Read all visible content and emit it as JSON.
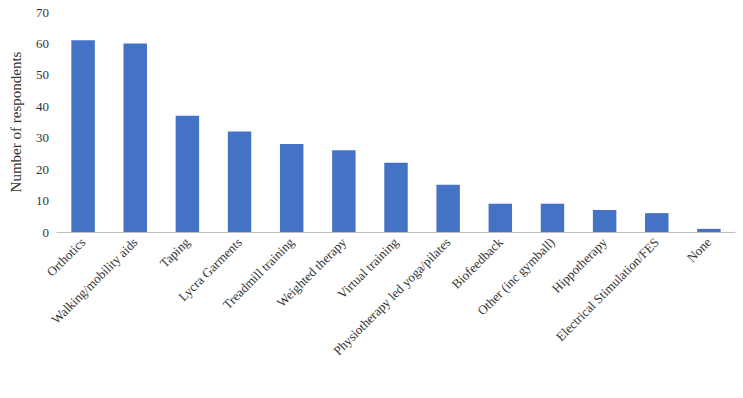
{
  "chart_data": {
    "type": "bar",
    "y_label": "Number of respondents",
    "categories": [
      "Orthotics",
      "Walking/mobility aids",
      "Taping",
      "Lycra Garments",
      "Treadmill training",
      "Weighted therapy",
      "Virtual training",
      "Physiotherapy led yoga/pilates",
      "Biofeedback",
      "Other (inc gymball)",
      "Hippotherapy",
      "Electrical Stimulation/FES",
      "None"
    ],
    "values": [
      61,
      60,
      37,
      32,
      28,
      26,
      22,
      15,
      9,
      9,
      7,
      6,
      1
    ],
    "color": "#4472c4",
    "ylim": [
      0,
      70
    ],
    "yticks": [
      0,
      10,
      20,
      30,
      40,
      50,
      60,
      70
    ],
    "grid": false
  }
}
